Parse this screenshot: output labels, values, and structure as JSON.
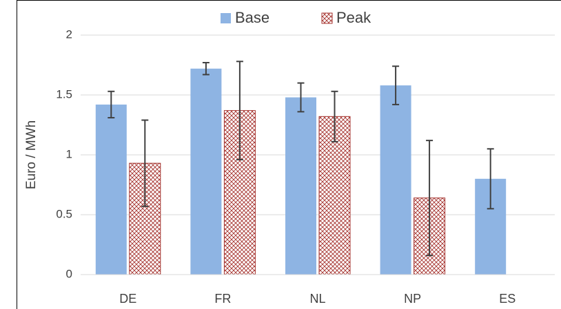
{
  "chart_data": {
    "type": "bar",
    "y_label": "Euro / MWh",
    "categories": [
      "DE",
      "FR",
      "NL",
      "NP",
      "ES"
    ],
    "series": [
      {
        "name": "Base",
        "color": "#8eb4e3",
        "pattern": "solid",
        "values": [
          1.42,
          1.72,
          1.48,
          1.58,
          0.8
        ],
        "errors": [
          0.11,
          0.05,
          0.12,
          0.16,
          0.25
        ]
      },
      {
        "name": "Peak",
        "color": "#a5322e",
        "pattern": "crosshatch",
        "values": [
          0.93,
          1.37,
          1.32,
          0.64,
          null
        ],
        "errors": [
          0.36,
          0.41,
          0.21,
          0.48,
          null
        ]
      }
    ],
    "ylim": [
      0,
      2
    ],
    "yticks": [
      0,
      0.5,
      1,
      1.5,
      2
    ],
    "grid": true,
    "legend": "top"
  }
}
